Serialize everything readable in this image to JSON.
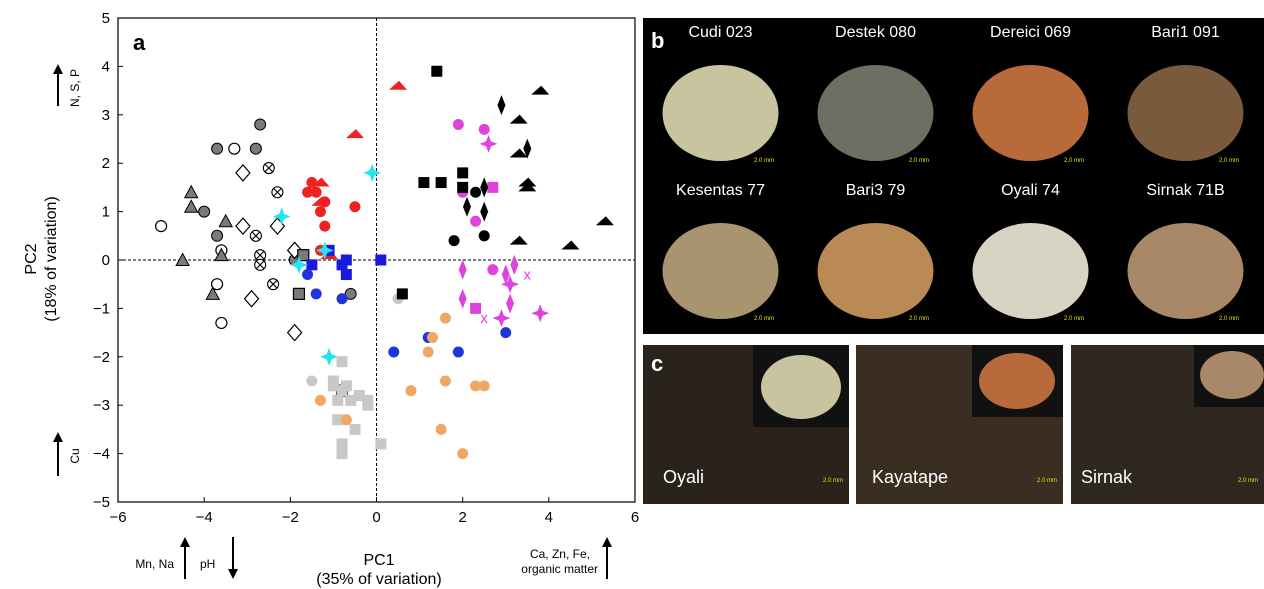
{
  "figure": {
    "panel_a_letter": "a",
    "panel_b_letter": "b",
    "panel_c_letter": "c"
  },
  "chart_data": {
    "type": "scatter",
    "xlabel_line1": "PC1",
    "xlabel_line2": "(35% of variation)",
    "ylabel_line1": "PC2",
    "ylabel_line2": "(18% of variation)",
    "xlim": [
      -6,
      6
    ],
    "ylim": [
      -5,
      5
    ],
    "xticks": [
      -6,
      -4,
      -2,
      0,
      2,
      4,
      6
    ],
    "yticks": [
      -5,
      -4,
      -3,
      -2,
      -1,
      0,
      1,
      2,
      3,
      4,
      5
    ],
    "reference_lines": {
      "x": 0,
      "y": 0
    },
    "x_loadings_left": [
      "Mn, Na",
      "pH"
    ],
    "x_loadings_right_line1": "Ca, Zn, Fe,",
    "x_loadings_right_line2": "organic matter",
    "y_loading_top": "N, S, P",
    "y_loading_bottom": "Cu",
    "groups": [
      {
        "marker": "circle",
        "fill": "#7a7a7a",
        "points": [
          [
            -2.7,
            2.8
          ],
          [
            -3.7,
            2.3
          ],
          [
            -2.8,
            2.3
          ],
          [
            -3.7,
            0.5
          ],
          [
            -4.0,
            1.0
          ],
          [
            -1.9,
            0.0
          ],
          [
            -0.6,
            -0.7
          ]
        ]
      },
      {
        "marker": "circle-open",
        "fill": "#ffffff",
        "points": [
          [
            -5.0,
            0.7
          ],
          [
            -3.6,
            0.2
          ],
          [
            -3.7,
            -0.5
          ],
          [
            -3.6,
            -1.3
          ],
          [
            -3.3,
            2.3
          ]
        ]
      },
      {
        "marker": "triangle",
        "fill": "#7a7a7a",
        "points": [
          [
            -4.3,
            1.4
          ],
          [
            -4.3,
            1.1
          ],
          [
            -3.5,
            0.8
          ],
          [
            -3.6,
            0.1
          ],
          [
            -4.5,
            0.0
          ],
          [
            -3.8,
            -0.7
          ]
        ]
      },
      {
        "marker": "diamond-open",
        "fill": "#ffffff",
        "points": [
          [
            -3.1,
            1.8
          ],
          [
            -3.1,
            0.7
          ],
          [
            -2.9,
            -0.8
          ],
          [
            -1.9,
            0.2
          ],
          [
            -1.9,
            -1.5
          ],
          [
            -2.3,
            0.7
          ]
        ]
      },
      {
        "marker": "otimes",
        "fill": "#ffffff",
        "points": [
          [
            -2.5,
            1.9
          ],
          [
            -2.3,
            1.4
          ],
          [
            -2.8,
            0.5
          ],
          [
            -2.7,
            0.1
          ],
          [
            -2.4,
            -0.5
          ],
          [
            -2.7,
            -0.1
          ]
        ]
      },
      {
        "marker": "square",
        "fill": "#7a7a7a",
        "points": [
          [
            -1.7,
            0.1
          ],
          [
            -1.8,
            -0.7
          ],
          [
            -0.8,
            -2.7
          ]
        ]
      },
      {
        "marker": "circle",
        "fill": "#ee2222",
        "points": [
          [
            -1.5,
            1.6
          ],
          [
            -1.6,
            1.4
          ],
          [
            -1.4,
            1.4
          ],
          [
            -1.2,
            1.2
          ],
          [
            -1.3,
            1.0
          ],
          [
            -1.2,
            0.7
          ],
          [
            -1.3,
            0.2
          ],
          [
            -0.5,
            1.1
          ]
        ]
      },
      {
        "marker": "wedge",
        "fill": "#ee2222",
        "points": [
          [
            0.5,
            3.6
          ],
          [
            -0.5,
            2.6
          ],
          [
            -1.3,
            1.6
          ],
          [
            -1.3,
            1.2
          ],
          [
            -1.1,
            0.1
          ]
        ]
      },
      {
        "marker": "square",
        "fill": "#1a1add",
        "points": [
          [
            -1.1,
            0.2
          ],
          [
            -1.5,
            -0.1
          ],
          [
            -0.8,
            -0.1
          ],
          [
            -0.7,
            0.0
          ],
          [
            -0.7,
            -0.3
          ],
          [
            0.1,
            0.0
          ]
        ]
      },
      {
        "marker": "circle",
        "fill": "#2233dd",
        "points": [
          [
            -1.6,
            -0.3
          ],
          [
            -1.4,
            -0.7
          ],
          [
            -0.8,
            -0.8
          ],
          [
            0.4,
            -1.9
          ],
          [
            1.2,
            -1.6
          ],
          [
            1.9,
            -1.9
          ],
          [
            3.0,
            -1.5
          ]
        ]
      },
      {
        "marker": "star4",
        "fill": "#22e6ee",
        "points": [
          [
            -0.1,
            1.8
          ],
          [
            -2.2,
            0.9
          ],
          [
            -1.8,
            -0.1
          ],
          [
            -1.1,
            -2.0
          ],
          [
            -1.2,
            0.2
          ]
        ]
      },
      {
        "marker": "square",
        "fill": "#c8c8c8",
        "points": [
          [
            -0.8,
            -2.1
          ],
          [
            -1.0,
            -2.5
          ],
          [
            -1.0,
            -2.6
          ],
          [
            -0.4,
            -2.8
          ],
          [
            -0.7,
            -2.6
          ],
          [
            -0.9,
            -2.9
          ],
          [
            -0.8,
            -2.7
          ],
          [
            -0.6,
            -2.9
          ],
          [
            -0.9,
            -3.3
          ],
          [
            -0.5,
            -3.5
          ],
          [
            -0.8,
            -3.8
          ],
          [
            -0.8,
            -4.0
          ],
          [
            0.1,
            -3.8
          ],
          [
            -0.2,
            -3.0
          ],
          [
            -0.2,
            -2.9
          ]
        ]
      },
      {
        "marker": "circle",
        "fill": "#c8c8c8",
        "points": [
          [
            -1.5,
            -2.5
          ],
          [
            0.5,
            -0.8
          ]
        ]
      },
      {
        "marker": "circle",
        "fill": "#f0a860",
        "points": [
          [
            1.6,
            -1.2
          ],
          [
            1.2,
            -1.9
          ],
          [
            1.3,
            -1.6
          ],
          [
            0.8,
            -2.7
          ],
          [
            1.6,
            -2.5
          ],
          [
            2.3,
            -2.6
          ],
          [
            2.5,
            -2.6
          ],
          [
            1.5,
            -3.5
          ],
          [
            2.0,
            -4.0
          ],
          [
            -1.3,
            -2.9
          ],
          [
            -0.7,
            -3.3
          ]
        ]
      },
      {
        "marker": "circle",
        "fill": "#dd44dd",
        "points": [
          [
            1.9,
            2.8
          ],
          [
            2.5,
            2.7
          ],
          [
            2.0,
            1.4
          ],
          [
            2.3,
            0.8
          ],
          [
            2.7,
            -0.2
          ]
        ]
      },
      {
        "marker": "square",
        "fill": "#dd44dd",
        "points": [
          [
            2.7,
            1.5
          ],
          [
            2.3,
            -1.0
          ]
        ]
      },
      {
        "marker": "star4",
        "fill": "#dd44dd",
        "points": [
          [
            2.6,
            2.4
          ],
          [
            3.1,
            -0.5
          ],
          [
            2.9,
            -1.2
          ],
          [
            3.8,
            -1.1
          ]
        ]
      },
      {
        "marker": "diamond",
        "fill": "#dd44dd",
        "points": [
          [
            2.0,
            -0.2
          ],
          [
            2.0,
            -0.8
          ],
          [
            3.0,
            -0.3
          ],
          [
            3.2,
            -0.1
          ],
          [
            3.1,
            -0.9
          ]
        ]
      },
      {
        "marker": "x",
        "fill": "#dd44dd",
        "points": [
          [
            3.5,
            -0.3
          ],
          [
            2.5,
            -1.2
          ]
        ]
      },
      {
        "marker": "square",
        "fill": "#000000",
        "points": [
          [
            1.4,
            3.9
          ],
          [
            2.0,
            1.8
          ],
          [
            1.1,
            1.6
          ],
          [
            1.5,
            1.6
          ],
          [
            2.0,
            1.5
          ],
          [
            0.6,
            -0.7
          ]
        ]
      },
      {
        "marker": "diamond",
        "fill": "#000000",
        "points": [
          [
            2.9,
            3.2
          ],
          [
            3.5,
            2.3
          ],
          [
            2.5,
            1.5
          ],
          [
            2.1,
            1.1
          ],
          [
            2.5,
            1.0
          ]
        ]
      },
      {
        "marker": "circle",
        "fill": "#000000",
        "points": [
          [
            1.8,
            0.4
          ],
          [
            2.5,
            0.5
          ],
          [
            2.3,
            1.4
          ]
        ]
      },
      {
        "marker": "wedge",
        "fill": "#000000",
        "points": [
          [
            3.8,
            3.5
          ],
          [
            3.3,
            2.9
          ],
          [
            3.3,
            2.2
          ],
          [
            3.5,
            1.6
          ],
          [
            3.5,
            1.5
          ],
          [
            3.3,
            0.4
          ],
          [
            4.5,
            0.3
          ],
          [
            5.3,
            0.8
          ]
        ]
      }
    ]
  },
  "panel_b": {
    "cells": [
      {
        "label": "Cudi 023",
        "scale": "2.0 mm"
      },
      {
        "label": "Destek 080",
        "scale": "2.0 mm"
      },
      {
        "label": "Dereici 069",
        "scale": "2.0 mm"
      },
      {
        "label": "Bari1 091",
        "scale": "2.0 mm"
      },
      {
        "label": "Kesentas 77",
        "scale": "2.0 mm"
      },
      {
        "label": "Bari3 79",
        "scale": "2.0 mm"
      },
      {
        "label": "Oyali 74",
        "scale": "2.0 mm"
      },
      {
        "label": "Sirnak 71B",
        "scale": "2.0 mm"
      }
    ],
    "colors": [
      "#c9c4a0",
      "#6e6e62",
      "#b86a3a",
      "#7a5a3c",
      "#a8946e",
      "#b98a56",
      "#d8d4c4",
      "#a88866"
    ]
  },
  "panel_c": {
    "cells": [
      {
        "label": "Oyali",
        "scale": "2.0 mm"
      },
      {
        "label": "Kayatape",
        "scale": "2.0 mm"
      },
      {
        "label": "Sirnak",
        "scale": "2.0 mm"
      }
    ]
  }
}
